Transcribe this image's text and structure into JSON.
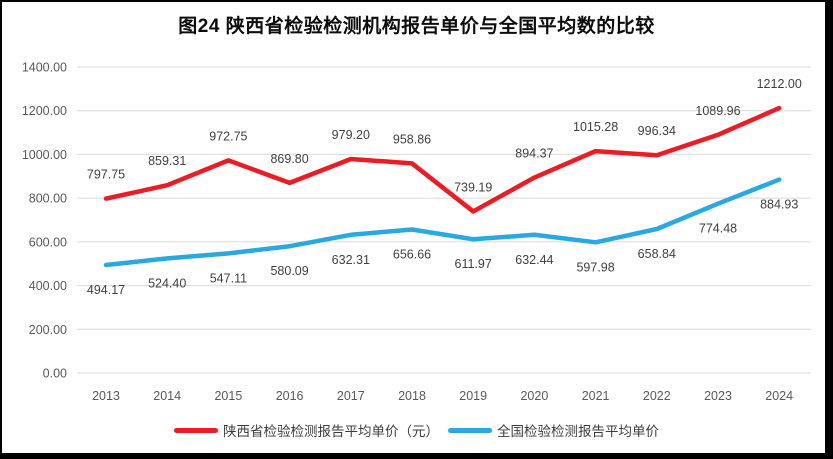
{
  "chart": {
    "title": "图24 陕西省检验检测机构报告单价与全国平均数的比较"
  },
  "chart_data": {
    "type": "line",
    "title": "图24 陕西省检验检测机构报告单价与全国平均数的比较",
    "categories": [
      "2013",
      "2014",
      "2015",
      "2016",
      "2017",
      "2018",
      "2019",
      "2020",
      "2021",
      "2022",
      "2023",
      "2024"
    ],
    "series": [
      {
        "name": "陕西省检验检测报告平均单价（元）",
        "color": "#ed1c24",
        "values": [
          797.75,
          859.31,
          972.75,
          869.8,
          979.2,
          958.86,
          739.19,
          894.37,
          1015.28,
          996.34,
          1089.96,
          1212.0
        ]
      },
      {
        "name": "全国检验检测报告平均单价",
        "color": "#29a9e0",
        "values": [
          494.17,
          524.4,
          547.11,
          580.09,
          632.31,
          656.66,
          611.97,
          632.44,
          597.98,
          658.84,
          774.48,
          884.93
        ]
      }
    ],
    "ylim": [
      0,
      1400
    ],
    "y_tick_step": 200,
    "y_tick_format_decimals": 2,
    "grid": true,
    "grid_color": "#d9d9d9",
    "axis_text_color": "#595959",
    "data_label_color": "#404040",
    "legend_position": "bottom",
    "xlabel": "",
    "ylabel": ""
  }
}
